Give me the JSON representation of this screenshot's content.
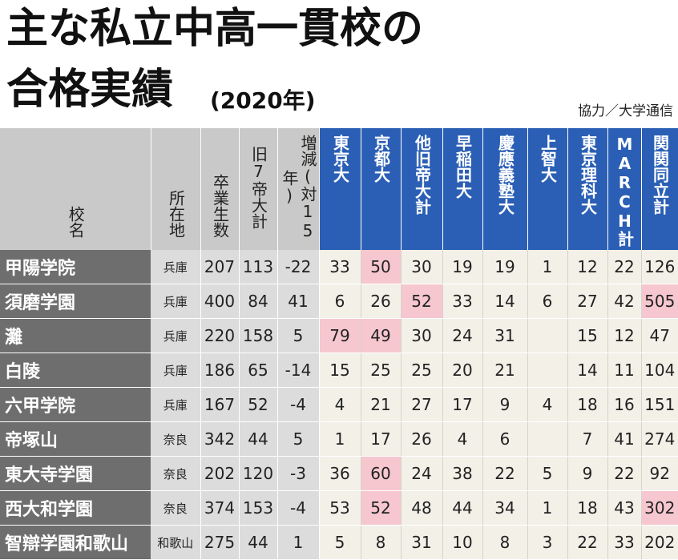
{
  "title_line1": "主な私立中高一貫校の",
  "title_line2": "合格実績",
  "year": "(2020年)",
  "credit": "協力／大学通信",
  "headers": {
    "school": "校名",
    "location": "所在地",
    "graduates": "卒業生数",
    "former7": "旧7帝大計",
    "change": "増減(対15年)",
    "u1": "東京大",
    "u2": "京都大",
    "u3": "他旧帝大計",
    "u4": "早稲田大",
    "u5": "慶應義塾大",
    "u6": "上智大",
    "u7": "東京理科大",
    "u8": "MARCH計",
    "u9": "関関同立計"
  },
  "highlight_color": "#f6c7cf",
  "header_blue": "#2b5fb5",
  "rows": [
    {
      "name": "甲陽学院",
      "pref": "兵庫",
      "grads": "207",
      "former7": "113",
      "change": "-22",
      "u1": "33",
      "u2": "50",
      "u3": "30",
      "u4": "19",
      "u5": "19",
      "u6": "1",
      "u7": "12",
      "u8": "22",
      "u9": "126"
    },
    {
      "name": "須磨学園",
      "pref": "兵庫",
      "grads": "400",
      "former7": "84",
      "change": "41",
      "u1": "6",
      "u2": "26",
      "u3": "52",
      "u4": "33",
      "u5": "14",
      "u6": "6",
      "u7": "27",
      "u8": "42",
      "u9": "505"
    },
    {
      "name": "灘",
      "pref": "兵庫",
      "grads": "220",
      "former7": "158",
      "change": "5",
      "u1": "79",
      "u2": "49",
      "u3": "30",
      "u4": "24",
      "u5": "31",
      "u6": "",
      "u7": "15",
      "u8": "12",
      "u9": "47"
    },
    {
      "name": "白陵",
      "pref": "兵庫",
      "grads": "186",
      "former7": "65",
      "change": "-14",
      "u1": "15",
      "u2": "25",
      "u3": "25",
      "u4": "20",
      "u5": "21",
      "u6": "",
      "u7": "14",
      "u8": "11",
      "u9": "104"
    },
    {
      "name": "六甲学院",
      "pref": "兵庫",
      "grads": "167",
      "former7": "52",
      "change": "-4",
      "u1": "4",
      "u2": "21",
      "u3": "27",
      "u4": "17",
      "u5": "9",
      "u6": "4",
      "u7": "18",
      "u8": "16",
      "u9": "151"
    },
    {
      "name": "帝塚山",
      "pref": "奈良",
      "grads": "342",
      "former7": "44",
      "change": "5",
      "u1": "1",
      "u2": "17",
      "u3": "26",
      "u4": "4",
      "u5": "6",
      "u6": "",
      "u7": "7",
      "u8": "41",
      "u9": "274"
    },
    {
      "name": "東大寺学園",
      "pref": "奈良",
      "grads": "202",
      "former7": "120",
      "change": "-3",
      "u1": "36",
      "u2": "60",
      "u3": "24",
      "u4": "38",
      "u5": "22",
      "u6": "5",
      "u7": "9",
      "u8": "22",
      "u9": "92"
    },
    {
      "name": "西大和学園",
      "pref": "奈良",
      "grads": "374",
      "former7": "153",
      "change": "-4",
      "u1": "53",
      "u2": "52",
      "u3": "48",
      "u4": "44",
      "u5": "34",
      "u6": "1",
      "u7": "18",
      "u8": "43",
      "u9": "302"
    },
    {
      "name": "智辯学園和歌山",
      "pref": "和歌山",
      "grads": "275",
      "former7": "44",
      "change": "1",
      "u1": "5",
      "u2": "8",
      "u3": "31",
      "u4": "10",
      "u5": "8",
      "u6": "3",
      "u7": "22",
      "u8": "33",
      "u9": "202"
    }
  ]
}
